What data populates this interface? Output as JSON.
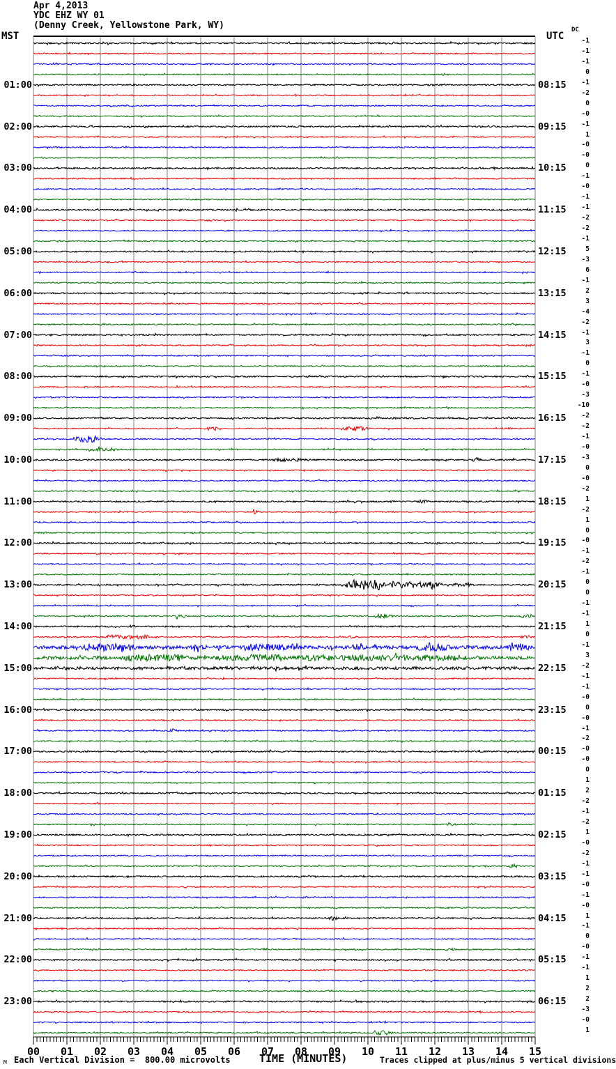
{
  "header": {
    "date": "Apr 4,2013",
    "station": "YDC EHZ WY 01",
    "location": "(Denny Creek, Yellowstone Park, WY)",
    "left_tz": "MST",
    "right_tz": "UTC",
    "dc_label": "DC"
  },
  "footer": {
    "scale_note": "Each Vertical Division =  800.00 microvolts",
    "xlabel": "TIME (MINUTES)",
    "clip_note": "Traces clipped at plus/minus 5 vertical divisions",
    "corner_mark": "M"
  },
  "axis": {
    "x_ticks": [
      "00",
      "01",
      "02",
      "03",
      "04",
      "05",
      "06",
      "07",
      "08",
      "09",
      "10",
      "11",
      "12",
      "13",
      "14",
      "15"
    ]
  },
  "chart_data": {
    "type": "line",
    "subtype": "helicorder-seismogram",
    "title": "YDC EHZ WY 01 (Denny Creek, Yellowstone Park, WY) Apr 4,2013",
    "xlabel": "TIME (MINUTES)",
    "x_range_minutes": [
      0,
      15
    ],
    "rows": 96,
    "minutes_per_row": 15,
    "trace_colors": [
      "#000000",
      "#ee0000",
      "#0000ee",
      "#007100"
    ],
    "grid_color": "#808080",
    "left_hour_labels": [
      "01:00",
      "02:00",
      "03:00",
      "04:00",
      "05:00",
      "06:00",
      "07:00",
      "08:00",
      "09:00",
      "10:00",
      "11:00",
      "12:00",
      "13:00",
      "14:00",
      "15:00",
      "16:00",
      "17:00",
      "18:00",
      "19:00",
      "20:00",
      "21:00",
      "22:00",
      "23:00"
    ],
    "right_hour_labels": [
      "08:15",
      "09:15",
      "10:15",
      "11:15",
      "12:15",
      "13:15",
      "14:15",
      "15:15",
      "16:15",
      "17:15",
      "18:15",
      "19:15",
      "20:15",
      "21:15",
      "22:15",
      "23:15",
      "00:15",
      "01:15",
      "02:15",
      "03:15",
      "04:15",
      "05:15",
      "06:15"
    ],
    "dc_offsets": [
      "-1",
      "-1",
      "-1",
      "0",
      "-1",
      "-2",
      "0",
      "-0",
      "-1",
      "1",
      "-0",
      "-0",
      "0",
      "-1",
      "-0",
      "-1",
      "-1",
      "-2",
      "-2",
      "-1",
      "5",
      "-3",
      "6",
      "-1",
      "2",
      "3",
      "-4",
      "-2",
      "-1",
      "3",
      "-1",
      "0",
      "-1",
      "-0",
      "-3",
      "-10",
      "-2",
      "-2",
      "-1",
      "-0",
      "-3",
      "0",
      "-0",
      "-2",
      "1",
      "-2",
      "1",
      "0",
      "-0",
      "-1",
      "-2",
      "-1",
      "0",
      "0",
      "-1",
      "-1",
      "1",
      "0",
      "-1",
      "3",
      "-2",
      "-1",
      "-1",
      "-0",
      "0",
      "-0",
      "-1",
      "-2",
      "-0",
      "-0",
      "0",
      "1",
      "2",
      "-2",
      "-1",
      "-2",
      "1",
      "-0",
      "-2",
      "-1",
      "-1",
      "-0",
      "-1",
      "-0",
      "1",
      "-1",
      "0",
      "-0",
      "-1",
      "-1",
      "1",
      "2",
      "2",
      "-3",
      "-0",
      "1"
    ],
    "events": [
      {
        "row": 37,
        "start": 5.1,
        "end": 5.7,
        "amp": 2.2
      },
      {
        "row": 37,
        "start": 9.2,
        "end": 10.1,
        "amp": 2.2
      },
      {
        "row": 38,
        "start": 1.2,
        "end": 2.1,
        "amp": 4.0
      },
      {
        "row": 39,
        "start": 1.5,
        "end": 2.6,
        "amp": 1.4
      },
      {
        "row": 40,
        "start": 7.1,
        "end": 8.3,
        "amp": 1.3
      },
      {
        "row": 40,
        "start": 13.1,
        "end": 13.45,
        "amp": 3.0
      },
      {
        "row": 44,
        "start": 11.5,
        "end": 11.85,
        "amp": 2.0
      },
      {
        "row": 45,
        "start": 6.5,
        "end": 6.8,
        "amp": 3.0
      },
      {
        "row": 52,
        "start": 9.3,
        "end": 10.6,
        "amp": 6.5
      },
      {
        "row": 52,
        "start": 10.6,
        "end": 12.3,
        "amp": 3.5
      },
      {
        "row": 52,
        "start": 12.3,
        "end": 13.2,
        "amp": 1.5
      },
      {
        "row": 55,
        "start": 4.2,
        "end": 4.7,
        "amp": 2.0
      },
      {
        "row": 55,
        "start": 10.2,
        "end": 10.8,
        "amp": 2.4
      },
      {
        "row": 55,
        "start": 14.5,
        "end": 15.0,
        "amp": 1.8
      },
      {
        "row": 57,
        "start": 2.1,
        "end": 3.6,
        "amp": 2.2
      },
      {
        "row": 57,
        "start": 9.4,
        "end": 9.8,
        "amp": 1.8
      },
      {
        "row": 57,
        "start": 14.5,
        "end": 15.0,
        "amp": 1.8
      },
      {
        "row": 58,
        "start": 0.0,
        "end": 15.0,
        "amp": 1.6
      },
      {
        "row": 58,
        "start": 1.4,
        "end": 3.1,
        "amp": 3.2
      },
      {
        "row": 58,
        "start": 4.7,
        "end": 5.2,
        "amp": 3.8
      },
      {
        "row": 58,
        "start": 6.2,
        "end": 8.0,
        "amp": 2.6
      },
      {
        "row": 58,
        "start": 9.5,
        "end": 10.0,
        "amp": 2.6
      },
      {
        "row": 58,
        "start": 11.4,
        "end": 12.5,
        "amp": 3.2
      },
      {
        "row": 58,
        "start": 14.1,
        "end": 15.0,
        "amp": 3.0
      },
      {
        "row": 59,
        "start": 0.0,
        "end": 15.0,
        "amp": 1.6
      },
      {
        "row": 59,
        "start": 2.7,
        "end": 4.6,
        "amp": 2.6
      },
      {
        "row": 59,
        "start": 5.4,
        "end": 7.6,
        "amp": 2.8
      },
      {
        "row": 59,
        "start": 8.0,
        "end": 13.0,
        "amp": 2.0
      },
      {
        "row": 60,
        "start": 0.0,
        "end": 15.0,
        "amp": 1.0
      },
      {
        "row": 66,
        "start": 4.0,
        "end": 4.5,
        "amp": 2.2
      },
      {
        "row": 75,
        "start": 12.3,
        "end": 12.65,
        "amp": 2.2
      },
      {
        "row": 79,
        "start": 14.2,
        "end": 14.55,
        "amp": 3.2
      },
      {
        "row": 84,
        "start": 8.8,
        "end": 9.15,
        "amp": 2.4
      },
      {
        "row": 87,
        "start": 12.3,
        "end": 12.75,
        "amp": 1.8
      },
      {
        "row": 95,
        "start": 10.1,
        "end": 10.8,
        "amp": 2.4
      }
    ],
    "scale_microvolts_per_division": "800.00",
    "clip_divisions": 5
  }
}
